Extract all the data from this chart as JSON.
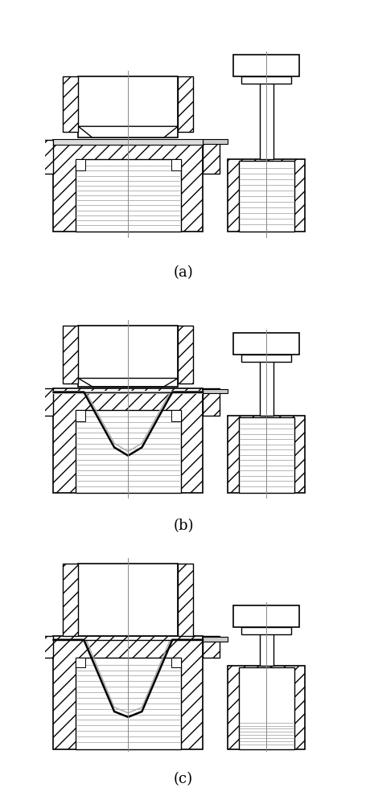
{
  "bg_color": "#ffffff",
  "line_color": "#000000",
  "labels": [
    "(a)",
    "(b)",
    "(c)"
  ],
  "label_fontsize": 13,
  "fig_width": 4.56,
  "fig_height": 10.0,
  "dpi": 100
}
